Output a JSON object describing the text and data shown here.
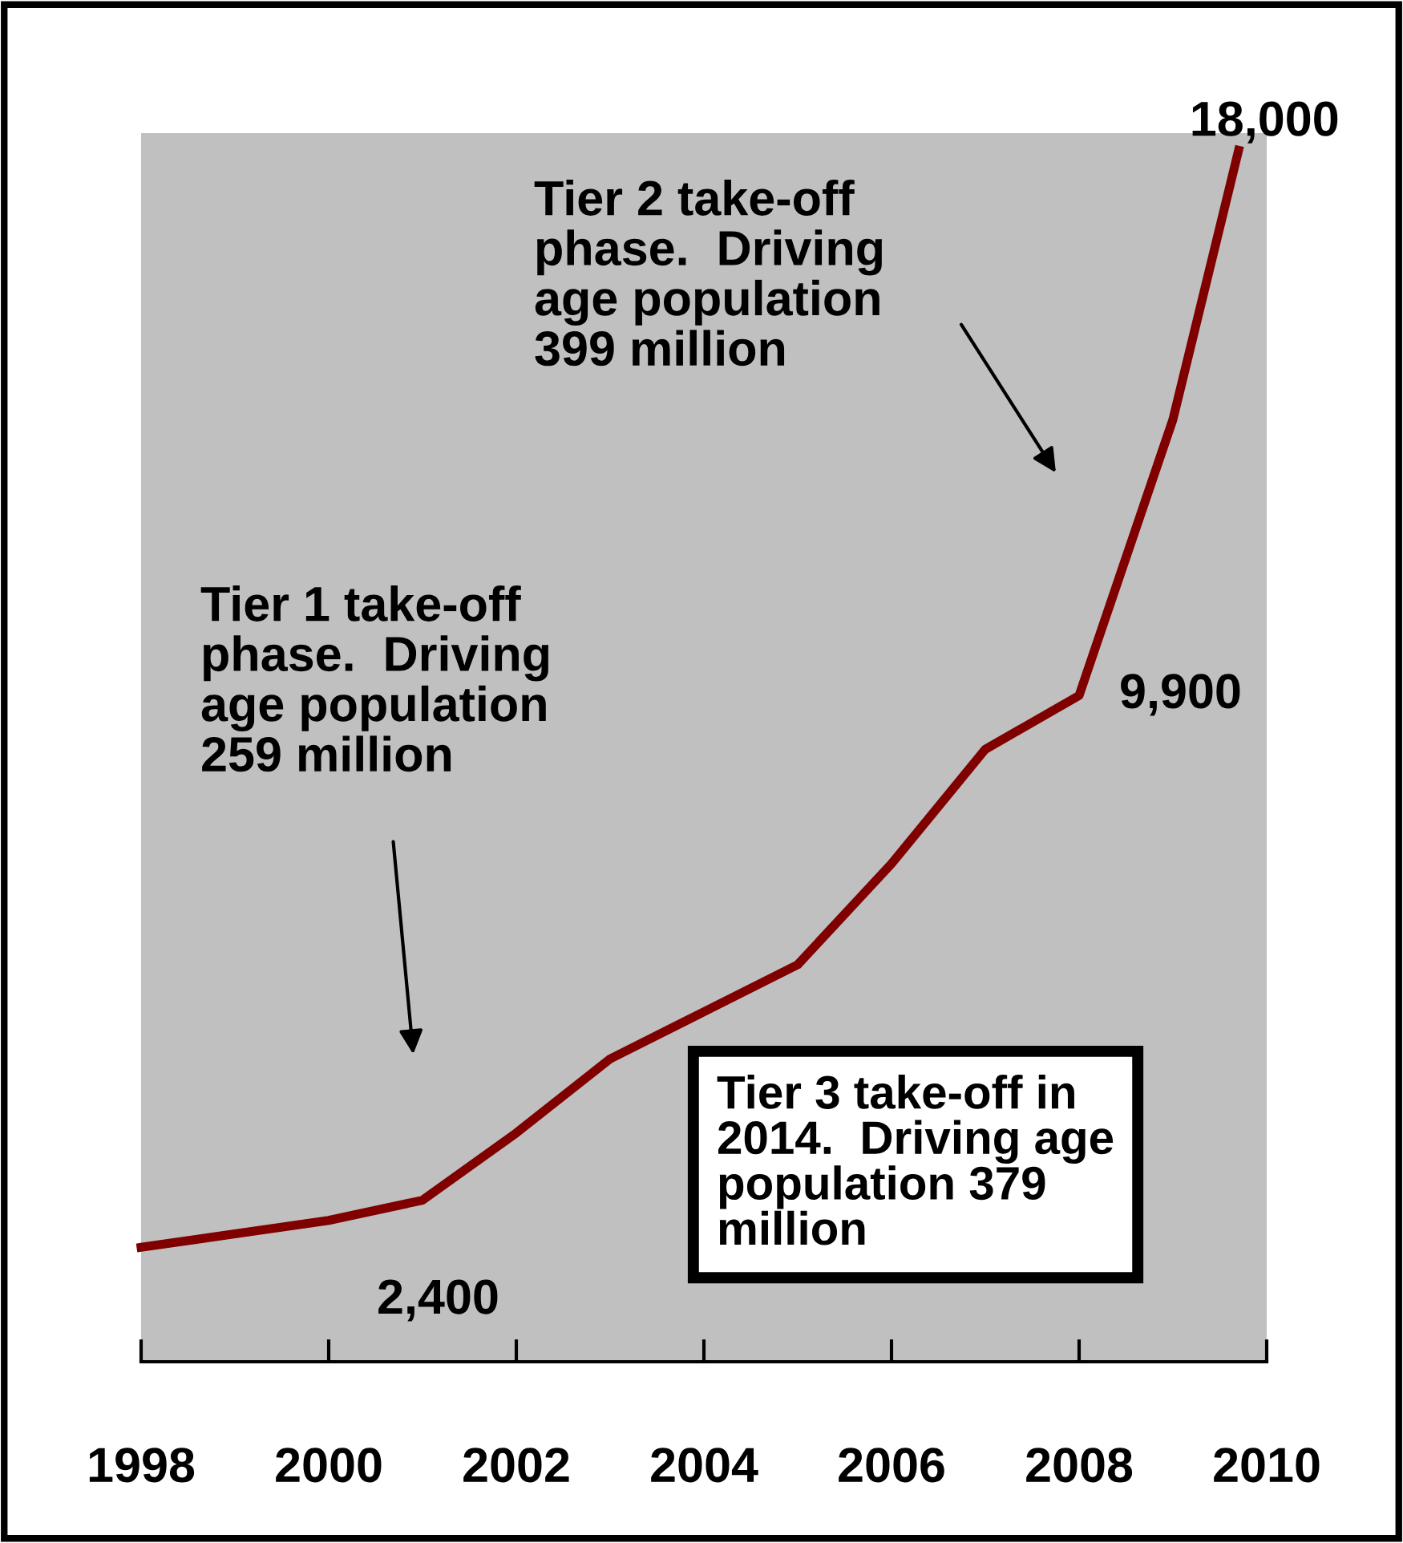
{
  "chart_data": {
    "type": "line",
    "x": [
      1998,
      1999,
      2000,
      2001,
      2002,
      2003,
      2004,
      2005,
      2006,
      2007,
      2008,
      2009,
      2009.7
    ],
    "xlim": [
      1998,
      2010
    ],
    "xticks": [
      1998,
      2000,
      2002,
      2004,
      2006,
      2008,
      2010
    ],
    "series": [
      {
        "color": "#800000",
        "values": [
          1700,
          1900,
          2100,
          2400,
          3400,
          4500,
          5200,
          5900,
          7400,
          9100,
          9900,
          14000,
          18000
        ],
        "value_labels": [
          null,
          null,
          null,
          "2,400",
          null,
          null,
          null,
          null,
          null,
          null,
          "9,900",
          null,
          "18,000"
        ]
      }
    ],
    "marker": "none",
    "line_style": "solid",
    "grid": false,
    "legend": false,
    "annotations": [
      "Tier 1 take-off\nphase.  Driving\nage population\n259 million",
      "Tier 2 take-off\nphase.  Driving\nage population\n399 million",
      "Tier 3 take-off in\n2014.  Driving age\npopulation 379\nmillion"
    ]
  }
}
